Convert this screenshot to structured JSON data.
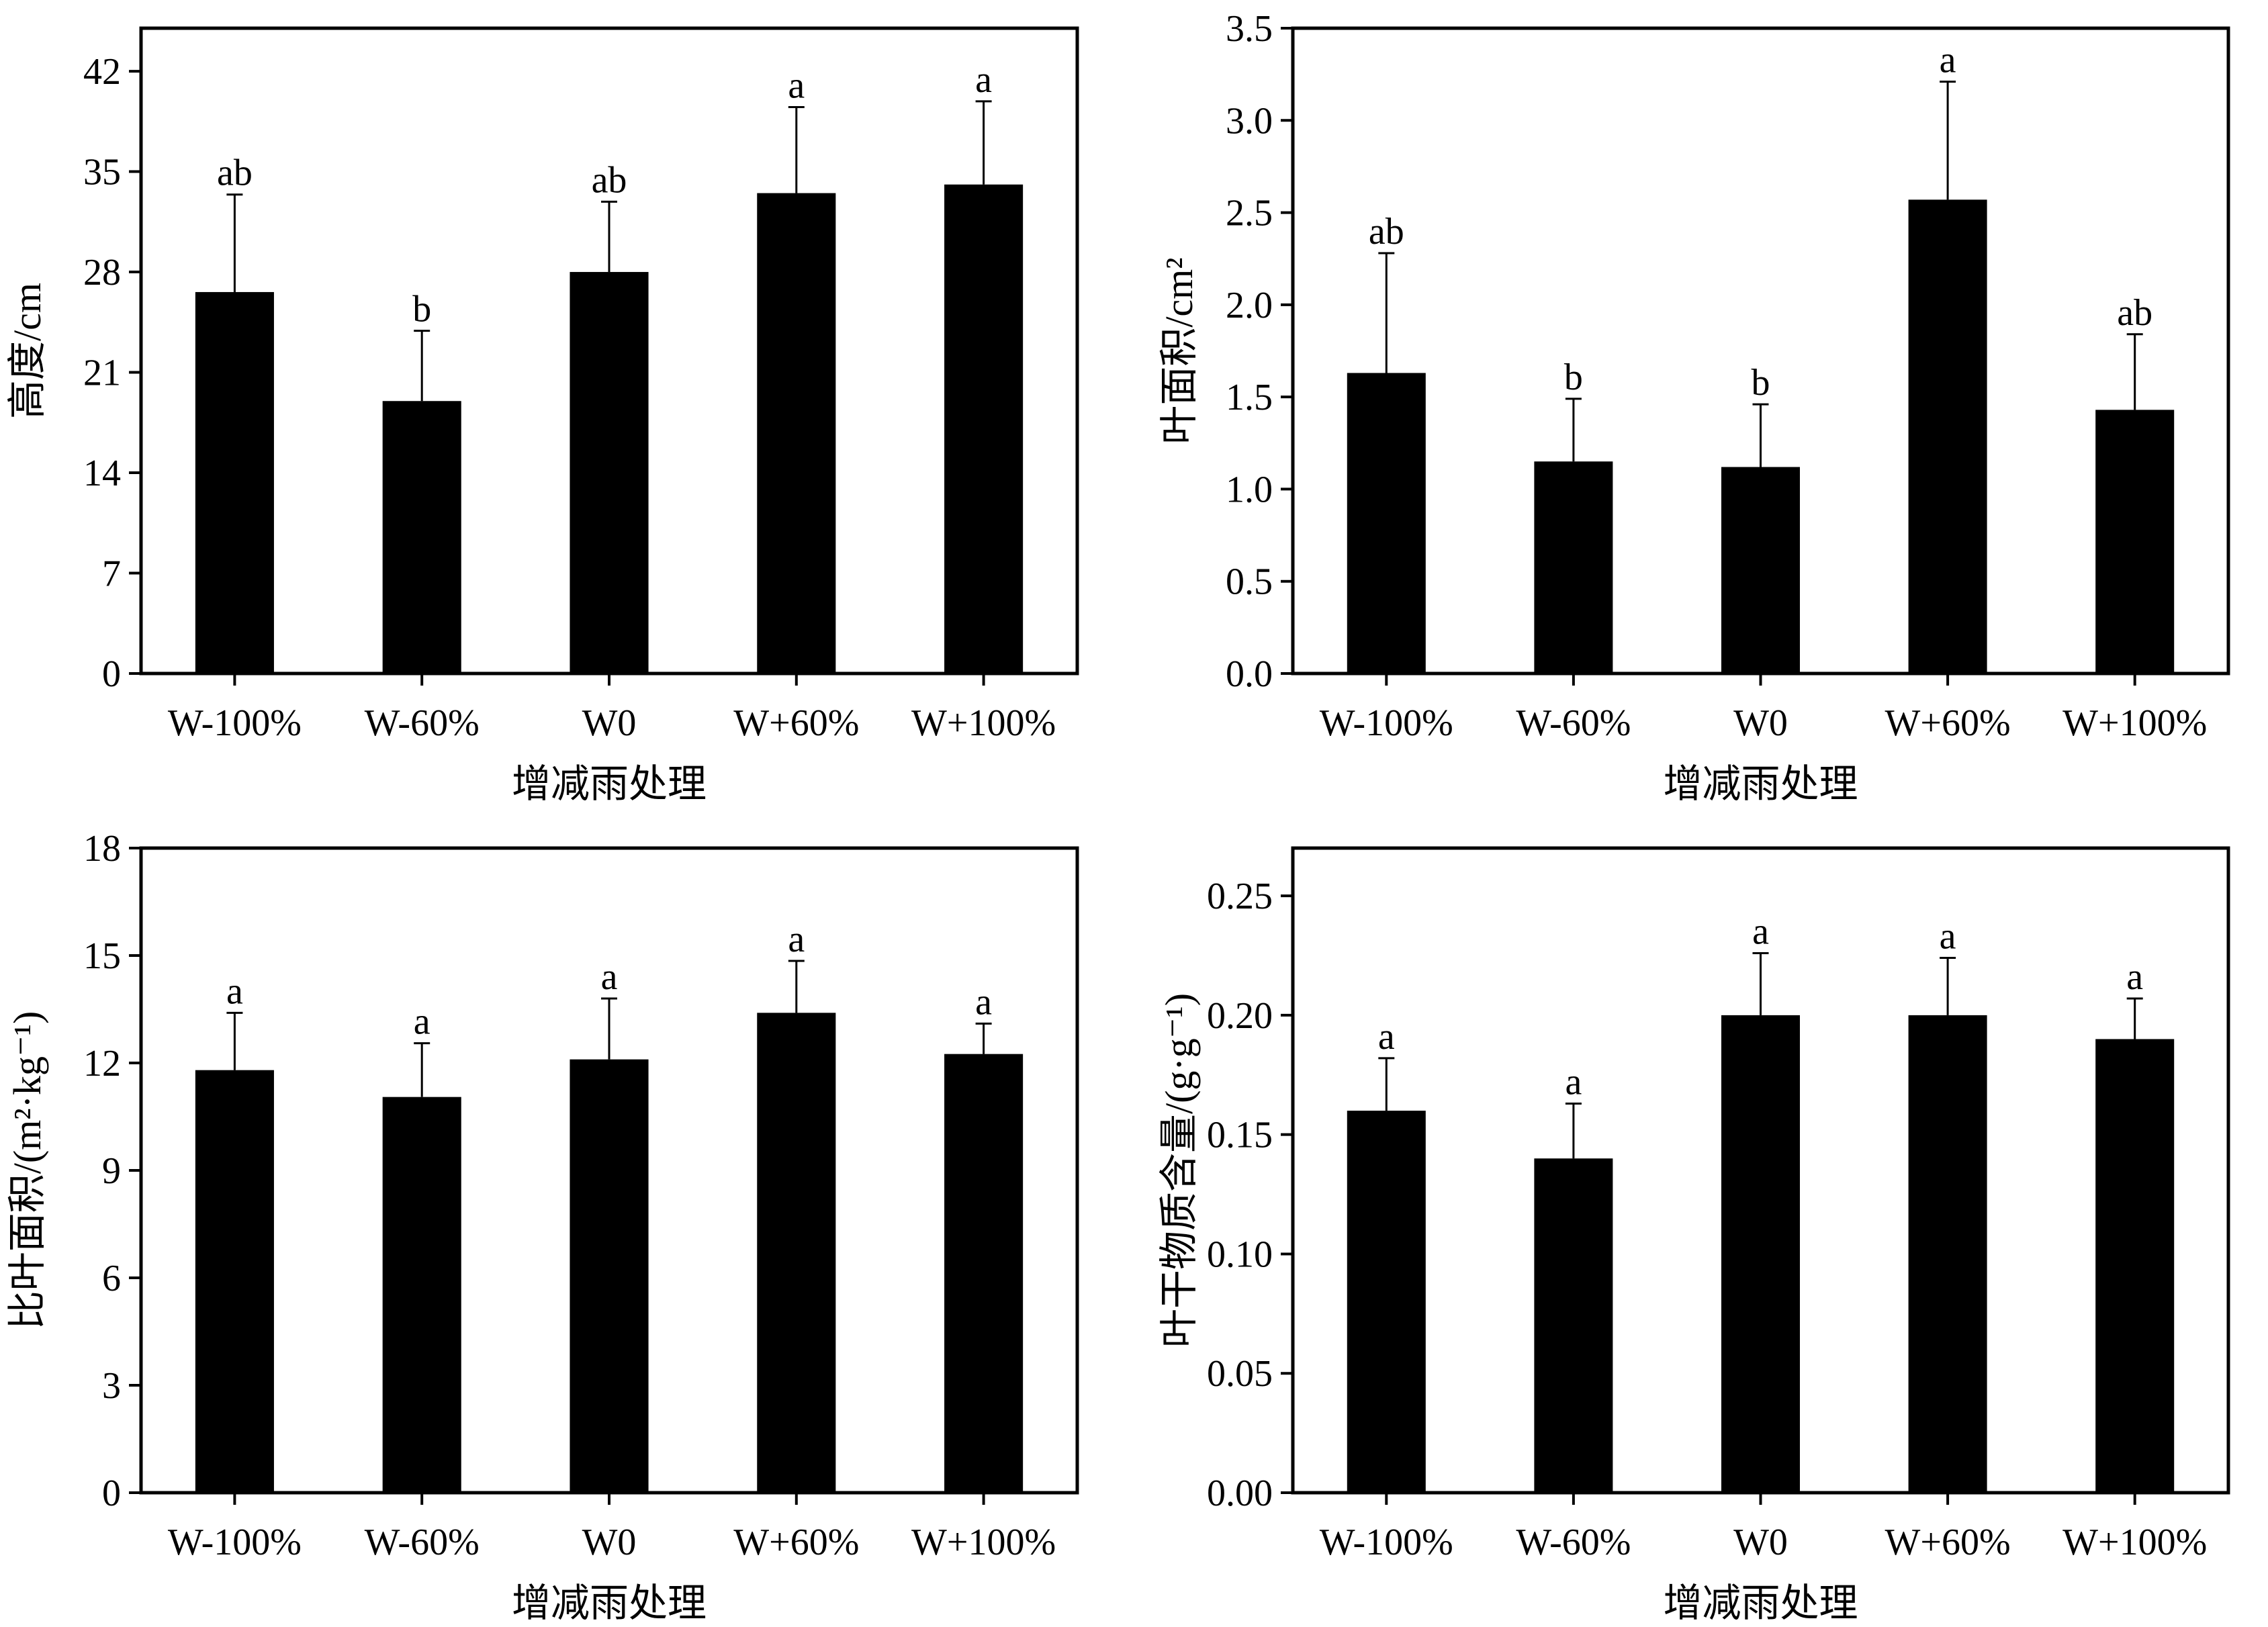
{
  "chart_data": [
    {
      "type": "bar",
      "xlabel": "增减雨处理",
      "ylabel": "高度/cm",
      "categories": [
        "W-100%",
        "W-60%",
        "W0",
        "W+60%",
        "W+100%"
      ],
      "values": [
        26.6,
        19.0,
        28.0,
        33.5,
        34.1
      ],
      "errors": [
        6.8,
        4.9,
        4.9,
        6.0,
        5.8
      ],
      "significance": [
        "ab",
        "b",
        "ab",
        "a",
        "a"
      ],
      "ylim": [
        0,
        45
      ],
      "yticks": [
        0,
        7,
        14,
        21,
        28,
        35,
        42
      ],
      "ytick_labels": [
        "0",
        "7",
        "14",
        "21",
        "28",
        "35",
        "42"
      ]
    },
    {
      "type": "bar",
      "xlabel": "增减雨处理",
      "ylabel": "叶面积/cm²",
      "categories": [
        "W-100%",
        "W-60%",
        "W0",
        "W+60%",
        "W+100%"
      ],
      "values": [
        1.63,
        1.15,
        1.12,
        2.57,
        1.43
      ],
      "errors": [
        0.65,
        0.34,
        0.34,
        0.64,
        0.41
      ],
      "significance": [
        "ab",
        "b",
        "b",
        "a",
        "ab"
      ],
      "ylim": [
        0,
        3.5
      ],
      "yticks": [
        0,
        0.5,
        1.0,
        1.5,
        2.0,
        2.5,
        3.0,
        3.5
      ],
      "ytick_labels": [
        "0.0",
        "0.5",
        "1.0",
        "1.5",
        "2.0",
        "2.5",
        "3.0",
        "3.5"
      ]
    },
    {
      "type": "bar",
      "xlabel": "增减雨处理",
      "ylabel": "比叶面积/(m²·kg⁻¹)",
      "categories": [
        "W-100%",
        "W-60%",
        "W0",
        "W+60%",
        "W+100%"
      ],
      "values": [
        11.8,
        11.05,
        12.1,
        13.4,
        12.25
      ],
      "errors": [
        1.6,
        1.5,
        1.7,
        1.45,
        0.85
      ],
      "significance": [
        "a",
        "a",
        "a",
        "a",
        "a"
      ],
      "ylim": [
        0,
        18
      ],
      "yticks": [
        0,
        3,
        6,
        9,
        12,
        15,
        18
      ],
      "ytick_labels": [
        "0",
        "3",
        "6",
        "9",
        "12",
        "15",
        "18"
      ]
    },
    {
      "type": "bar",
      "xlabel": "增减雨处理",
      "ylabel": "叶干物质含量/(g·g⁻¹)",
      "categories": [
        "W-100%",
        "W-60%",
        "W0",
        "W+60%",
        "W+100%"
      ],
      "values": [
        0.16,
        0.14,
        0.2,
        0.2,
        0.19
      ],
      "errors": [
        0.022,
        0.023,
        0.026,
        0.024,
        0.017
      ],
      "significance": [
        "a",
        "a",
        "a",
        "a",
        "a"
      ],
      "ylim": [
        0,
        0.27
      ],
      "yticks": [
        0,
        0.05,
        0.1,
        0.15,
        0.2,
        0.25
      ],
      "ytick_labels": [
        "0.00",
        "0.05",
        "0.10",
        "0.15",
        "0.20",
        "0.25"
      ]
    }
  ]
}
